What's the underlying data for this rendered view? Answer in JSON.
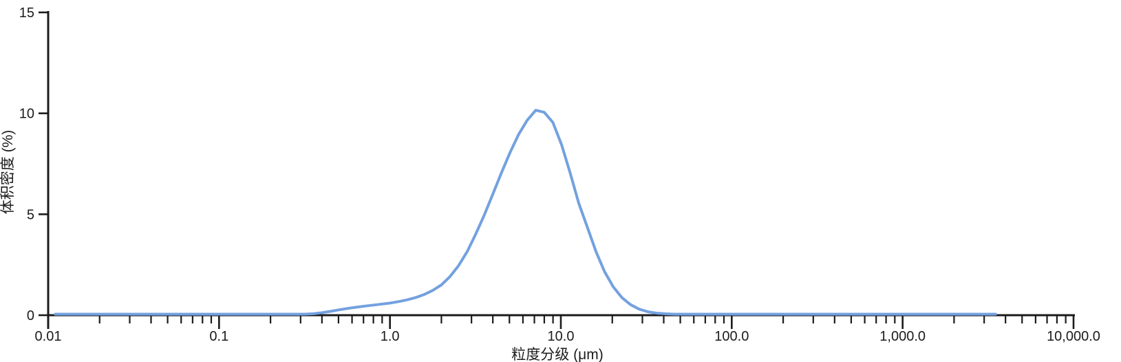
{
  "chart_data": {
    "type": "line",
    "title": "",
    "xlabel": "粒度分级 (μm)",
    "ylabel": "体积密度 (%)",
    "x_scale": "log",
    "xlim": [
      0.01,
      10000
    ],
    "ylim": [
      0,
      15
    ],
    "grid": false,
    "legend": "none",
    "background": "#ffffff",
    "axis_color": "#1b1b1b",
    "x_tick_values": [
      0.01,
      0.1,
      1,
      10,
      100,
      1000,
      10000
    ],
    "x_tick_labels": [
      "0.01",
      "0.1",
      "1.0",
      "10.0",
      "100.0",
      "1,000.0",
      "10,000.0"
    ],
    "y_tick_values": [
      0,
      5,
      10,
      15
    ],
    "y_tick_labels": [
      "0",
      "5",
      "10",
      "15"
    ],
    "x_minor_ticks": "2-9 within each decade",
    "series": [
      {
        "name": "体积密度",
        "color": "#73A1DF",
        "peak": {
          "x_um": 7.1,
          "value_pct": 10.1
        },
        "data_range_um": [
          0.011,
          3500
        ],
        "points": [
          [
            0.011,
            0
          ],
          [
            0.05,
            0
          ],
          [
            0.1,
            0
          ],
          [
            0.2,
            0
          ],
          [
            0.316,
            0
          ],
          [
            0.355,
            0.02
          ],
          [
            0.4,
            0.07
          ],
          [
            0.45,
            0.14
          ],
          [
            0.5,
            0.21
          ],
          [
            0.56,
            0.28
          ],
          [
            0.63,
            0.34
          ],
          [
            0.71,
            0.4
          ],
          [
            0.8,
            0.45
          ],
          [
            0.9,
            0.5
          ],
          [
            1.0,
            0.55
          ],
          [
            1.12,
            0.62
          ],
          [
            1.26,
            0.71
          ],
          [
            1.42,
            0.83
          ],
          [
            1.59,
            0.98
          ],
          [
            1.78,
            1.18
          ],
          [
            2.0,
            1.45
          ],
          [
            2.24,
            1.85
          ],
          [
            2.52,
            2.4
          ],
          [
            2.83,
            3.1
          ],
          [
            3.17,
            3.95
          ],
          [
            3.56,
            4.9
          ],
          [
            4.0,
            5.95
          ],
          [
            4.49,
            7.0
          ],
          [
            5.04,
            8.0
          ],
          [
            5.66,
            8.9
          ],
          [
            6.35,
            9.6
          ],
          [
            7.13,
            10.1
          ],
          [
            8.0,
            10.0
          ],
          [
            8.98,
            9.5
          ],
          [
            10.09,
            8.4
          ],
          [
            11.33,
            7.0
          ],
          [
            12.73,
            5.5
          ],
          [
            14.3,
            4.3
          ],
          [
            16.06,
            3.1
          ],
          [
            18.04,
            2.1
          ],
          [
            20.27,
            1.35
          ],
          [
            22.77,
            0.82
          ],
          [
            25.58,
            0.47
          ],
          [
            28.73,
            0.25
          ],
          [
            32.27,
            0.12
          ],
          [
            36.24,
            0.05
          ],
          [
            40.71,
            0.02
          ],
          [
            45.73,
            0
          ],
          [
            60,
            0
          ],
          [
            100,
            0
          ],
          [
            300,
            0
          ],
          [
            1000,
            0
          ],
          [
            2000,
            0
          ],
          [
            3500,
            0
          ]
        ]
      }
    ]
  }
}
